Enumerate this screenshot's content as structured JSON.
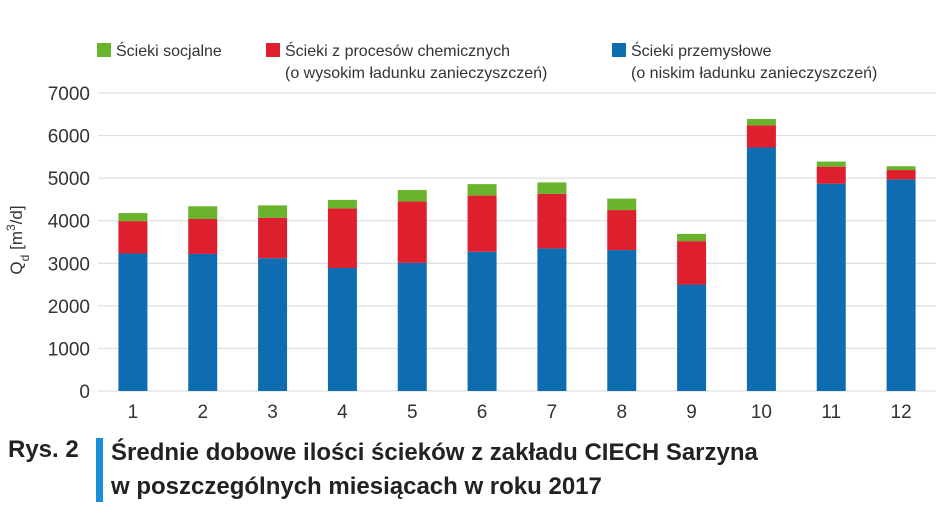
{
  "chart_data": {
    "type": "bar",
    "stacked": true,
    "categories": [
      "1",
      "2",
      "3",
      "4",
      "5",
      "6",
      "7",
      "8",
      "9",
      "10",
      "11",
      "12"
    ],
    "ylabel_main": "Q",
    "ylabel_sub": "d",
    "ylabel_unit_pre": "[m",
    "ylabel_unit_sup": "3",
    "ylabel_unit_post": "/d]",
    "ylim": [
      0,
      7000
    ],
    "yticks": [
      "0",
      "1000",
      "2000",
      "3000",
      "4000",
      "5000",
      "6000",
      "7000"
    ],
    "grid": true,
    "legend_position": "top",
    "series": [
      {
        "name": "Ścieki przemysłowe",
        "name_line2": "(o niskim ładunku zanieczyszczeń)",
        "color": "#0e6db0",
        "values": [
          3230,
          3220,
          3120,
          2890,
          3010,
          3270,
          3350,
          3310,
          2500,
          5720,
          4870,
          4970
        ]
      },
      {
        "name": "Ścieki z procesów chemicznych",
        "name_line2": "(o wysokim ładunku zanieczyszczeń)",
        "color": "#de1f2e",
        "values": [
          760,
          820,
          950,
          1400,
          1440,
          1320,
          1280,
          940,
          1020,
          520,
          400,
          220
        ]
      },
      {
        "name": "Ścieki socjalne",
        "name_line2": "",
        "color": "#6ab42d",
        "values": [
          190,
          300,
          290,
          200,
          270,
          270,
          270,
          270,
          170,
          150,
          120,
          90
        ]
      }
    ]
  },
  "caption": {
    "label": "Rys. 2",
    "line1": "Średnie dobowe ilości ścieków z zakładu CIECH Sarzyna",
    "line2": "w poszczególnych miesiącach w roku 2017"
  }
}
